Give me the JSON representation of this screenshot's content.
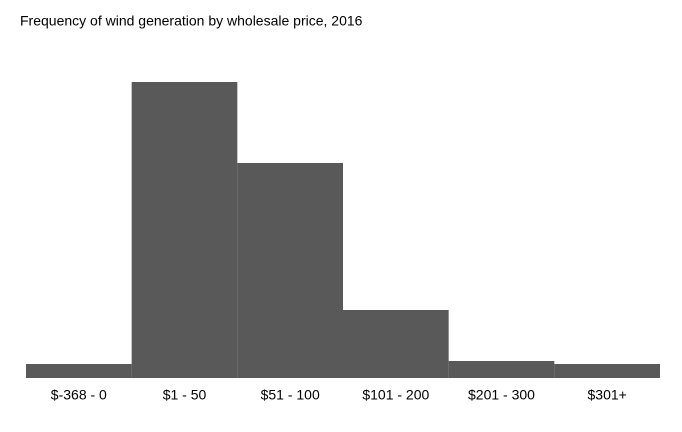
{
  "chart_data": {
    "type": "bar",
    "title": "Frequency of wind generation by wholesale price, 2016",
    "categories": [
      "$-368 - 0",
      "$1 - 50",
      "$51 - 100",
      "$101 - 200",
      "$201 - 300",
      "$301+"
    ],
    "values": [
      14,
      296,
      215,
      68,
      17,
      14
    ],
    "color": "#595959"
  }
}
